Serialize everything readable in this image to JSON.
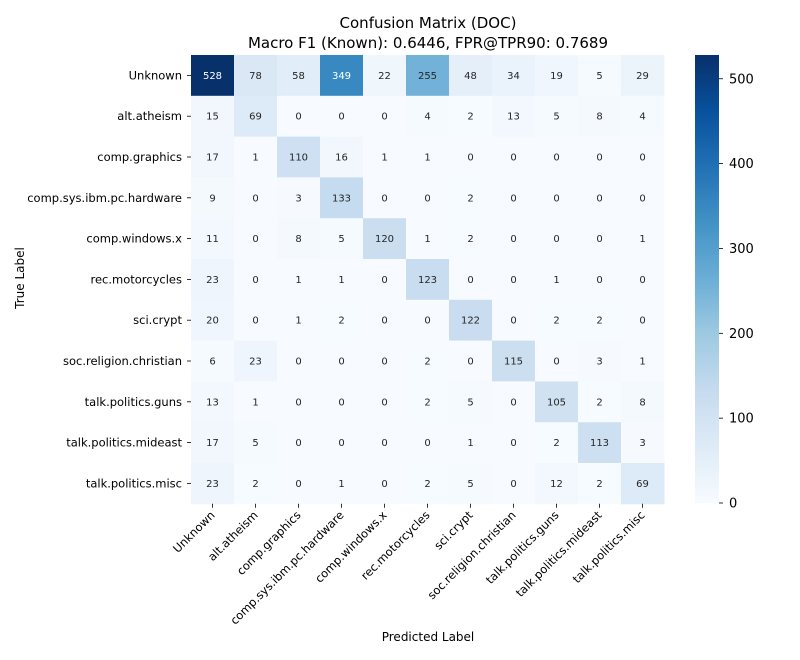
{
  "chart_data": {
    "type": "heatmap",
    "title": "Confusion Matrix (DOC)",
    "subtitle": "Macro F1 (Known): 0.6446, FPR@TPR90: 0.7689",
    "xlabel": "Predicted Label",
    "ylabel": "True Label",
    "x_categories": [
      "Unknown",
      "alt.atheism",
      "comp.graphics",
      "comp.sys.ibm.pc.hardware",
      "comp.windows.x",
      "rec.motorcycles",
      "sci.crypt",
      "soc.religion.christian",
      "talk.politics.guns",
      "talk.politics.mideast",
      "talk.politics.misc"
    ],
    "y_categories": [
      "Unknown",
      "alt.atheism",
      "comp.graphics",
      "comp.sys.ibm.pc.hardware",
      "comp.windows.x",
      "rec.motorcycles",
      "sci.crypt",
      "soc.religion.christian",
      "talk.politics.guns",
      "talk.politics.mideast",
      "talk.politics.misc"
    ],
    "values": [
      [
        528,
        78,
        58,
        349,
        22,
        255,
        48,
        34,
        19,
        5,
        29
      ],
      [
        15,
        69,
        0,
        0,
        0,
        4,
        2,
        13,
        5,
        8,
        4
      ],
      [
        17,
        1,
        110,
        16,
        1,
        1,
        0,
        0,
        0,
        0,
        0
      ],
      [
        9,
        0,
        3,
        133,
        0,
        0,
        2,
        0,
        0,
        0,
        0
      ],
      [
        11,
        0,
        8,
        5,
        120,
        1,
        2,
        0,
        0,
        0,
        1
      ],
      [
        23,
        0,
        1,
        1,
        0,
        123,
        0,
        0,
        1,
        0,
        0
      ],
      [
        20,
        0,
        1,
        2,
        0,
        0,
        122,
        0,
        2,
        2,
        0
      ],
      [
        6,
        23,
        0,
        0,
        0,
        2,
        0,
        115,
        0,
        3,
        1
      ],
      [
        13,
        1,
        0,
        0,
        0,
        2,
        5,
        0,
        105,
        2,
        8
      ],
      [
        17,
        5,
        0,
        0,
        0,
        0,
        1,
        0,
        2,
        113,
        3
      ],
      [
        23,
        2,
        0,
        1,
        0,
        2,
        5,
        0,
        12,
        2,
        69
      ]
    ],
    "colormap": "Blues",
    "vmin": 0,
    "vmax": 528,
    "colorbar_ticks": [
      0,
      100,
      200,
      300,
      400,
      500
    ],
    "legend_placement": "right"
  }
}
